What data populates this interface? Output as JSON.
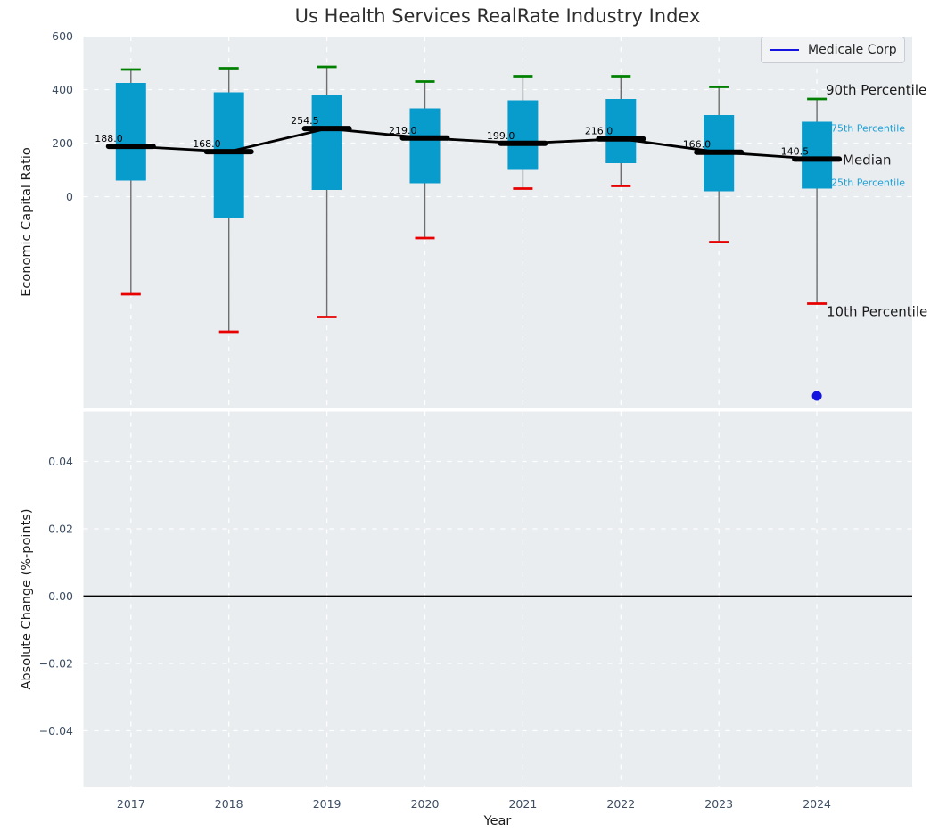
{
  "colors": {
    "plot_bg": "#e9edf0",
    "grid": "#ffffff",
    "box_fill": "#089ccd",
    "whisker": "#6e6e6e",
    "p90_cap": "#008000",
    "p10_cap": "#e80000",
    "median_line": "#000000",
    "company": "#1414e0",
    "tick_label": "#3d4e63",
    "axis_label": "#1c1c1c",
    "minor_label": "#1d9fd4",
    "annotation": "#000000"
  },
  "chart_data": [
    {
      "type": "boxplot+line",
      "title": "Us Health Services RealRate Industry Index",
      "ylabel": "Economic Capital Ratio",
      "xlabel": "",
      "categories": [
        "2017",
        "2018",
        "2019",
        "2020",
        "2021",
        "2022",
        "2023",
        "2024"
      ],
      "ytick_labels": [
        "600",
        "400",
        "200",
        "0"
      ],
      "ytick_values": [
        600,
        400,
        200,
        0
      ],
      "ylim": [
        -790,
        600
      ],
      "grid": true,
      "legend": [
        "Medicale Corp"
      ],
      "legend_position": "upper right",
      "series": [
        {
          "name": "90th Percentile",
          "role": "p90",
          "values": [
            475,
            480,
            485,
            430,
            450,
            450,
            410,
            365
          ]
        },
        {
          "name": "75th Percentile",
          "role": "p75",
          "values": [
            425,
            390,
            380,
            330,
            360,
            365,
            305,
            280
          ]
        },
        {
          "name": "Median",
          "role": "median",
          "values": [
            188.0,
            168.0,
            254.5,
            219.0,
            199.0,
            216.0,
            166.0,
            140.5
          ]
        },
        {
          "name": "25th Percentile",
          "role": "p25",
          "values": [
            60,
            -80,
            25,
            50,
            100,
            125,
            20,
            30
          ]
        },
        {
          "name": "10th Percentile",
          "role": "p10",
          "values": [
            -365,
            -505,
            -450,
            -155,
            30,
            40,
            -170,
            -400
          ]
        }
      ],
      "median_labels": [
        "188.0",
        "168.0",
        "254.5",
        "219.0",
        "199.0",
        "216.0",
        "166.0",
        "140.5"
      ],
      "company_point": {
        "name": "Medicale Corp",
        "year": "2024",
        "value": -745
      },
      "right_labels": [
        {
          "text": "90th Percentile",
          "style": "major",
          "anchor": "p90"
        },
        {
          "text": "75th Percentile",
          "style": "minor",
          "anchor": "p75"
        },
        {
          "text": "Median",
          "style": "major",
          "anchor": "median"
        },
        {
          "text": "25th Percentile",
          "style": "minor",
          "anchor": "p25"
        },
        {
          "text": "10th Percentile",
          "style": "major",
          "anchor": "p10"
        }
      ]
    },
    {
      "type": "line",
      "title": "",
      "ylabel": "Absolute Change (%-points)",
      "xlabel": "Year",
      "categories": [
        "2017",
        "2018",
        "2019",
        "2020",
        "2021",
        "2022",
        "2023",
        "2024"
      ],
      "ytick_labels": [
        "0.04",
        "0.02",
        "0.00",
        "−0.02",
        "−0.04"
      ],
      "ytick_values": [
        0.04,
        0.02,
        0.0,
        -0.02,
        -0.04
      ],
      "ylim": [
        -0.056,
        0.055
      ],
      "grid": true,
      "zero_line": 0.0,
      "series": []
    }
  ]
}
